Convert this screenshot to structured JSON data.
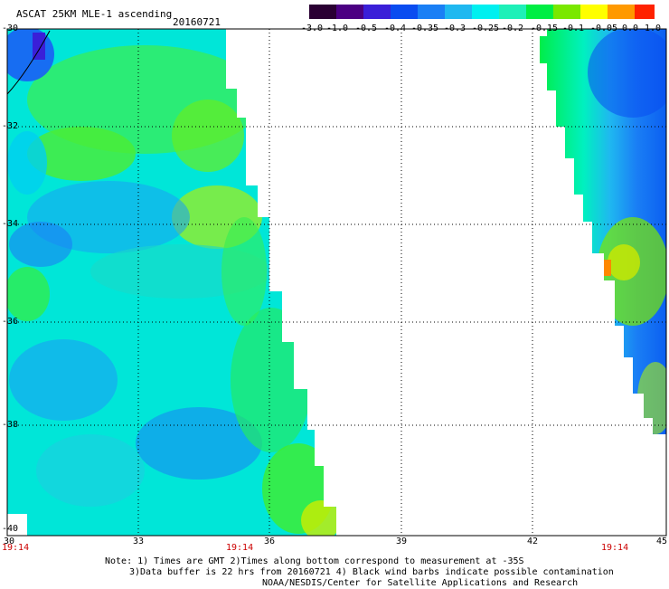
{
  "title": "ASCAT 25KM MLE-1 ascending",
  "date": "20160721",
  "colorbar": {
    "labels": [
      "-3.0",
      "-1.0",
      "-0.5",
      "-0.4",
      "-0.35",
      "-0.3",
      "-0.25",
      "-0.2",
      "-0.15",
      "-0.1",
      "-0.05",
      "0.0",
      "1.0"
    ],
    "colors": [
      "#2a0033",
      "#4b0082",
      "#3a1fd8",
      "#0a4cf0",
      "#1a7ff5",
      "#1fb8f0",
      "#00f0f0",
      "#1ef0b8",
      "#00ee44",
      "#7ae800",
      "#ffff00",
      "#ff9900",
      "#ff2200"
    ]
  },
  "y_ticks": [
    "-30",
    "-32",
    "-34",
    "-36",
    "-38",
    "-40"
  ],
  "x_ticks": [
    "30",
    "33",
    "36",
    "39",
    "42",
    "45"
  ],
  "pass_times": [
    "19:14",
    "19:14",
    "19:14"
  ],
  "notes": [
    "Note: 1) Times are GMT 2)Times along bottom correspond to measurement at -35S",
    "3)Data buffer is 22 hrs from 20160721 4) Black wind barbs indicate possible contamination",
    "NOAA/NESDIS/Center for Satellite Applications and Research"
  ]
}
